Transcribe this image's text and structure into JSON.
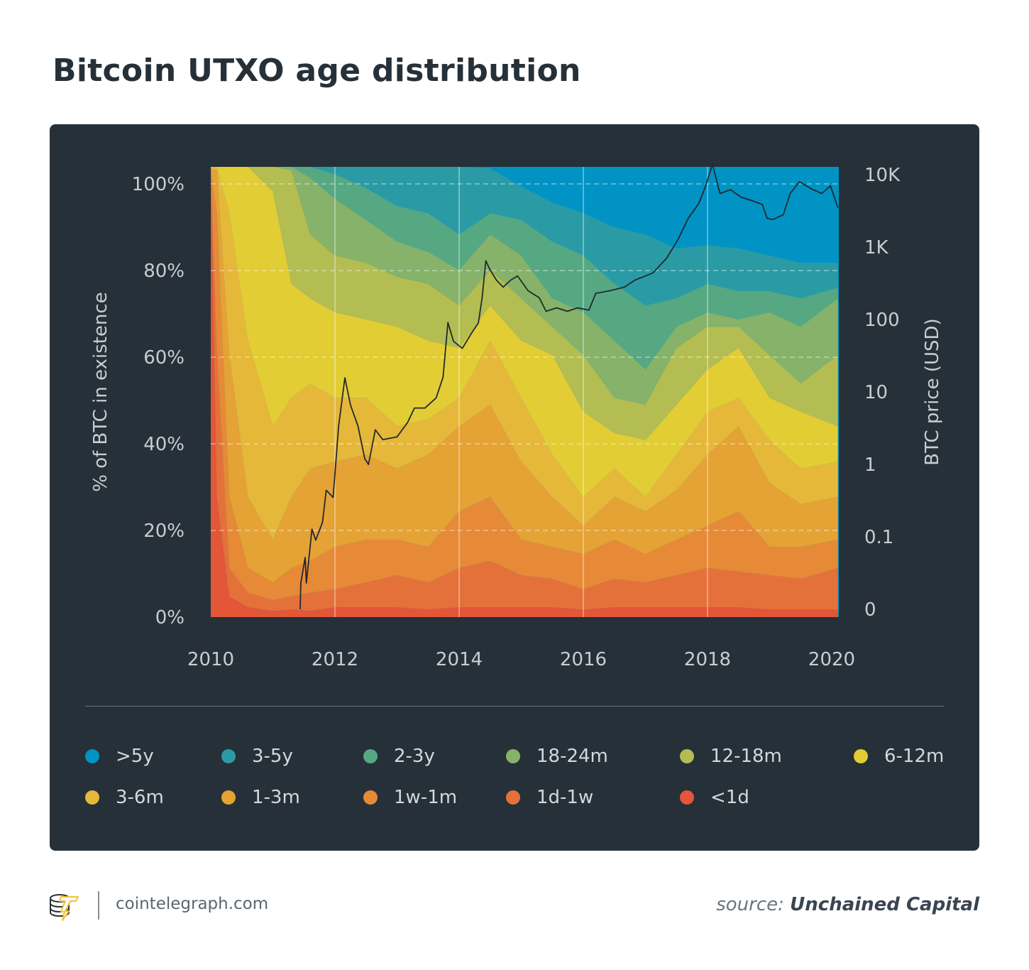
{
  "title": "Bitcoin UTXO age distribution",
  "footer": {
    "site": "cointelegraph.com",
    "source_prefix": "source:",
    "source_name": "Unchained Capital"
  },
  "chart_data": {
    "type": "area",
    "stacked": true,
    "title": "Bitcoin UTXO age distribution",
    "xlabel": "",
    "ylabel": "% of BTC in existence",
    "y2label": "BTC price (USD)",
    "xlim": [
      2010,
      2020.1
    ],
    "ylim": [
      0,
      100
    ],
    "y2_scale": "log",
    "x_ticks": [
      "2010",
      "2012",
      "2014",
      "2016",
      "2018",
      "2020"
    ],
    "x_tick_values": [
      2010,
      2012,
      2014,
      2016,
      2018,
      2020
    ],
    "y_ticks": [
      "0%",
      "20%",
      "40%",
      "60%",
      "80%",
      "100%"
    ],
    "y_tick_values": [
      0,
      20,
      40,
      60,
      80,
      100
    ],
    "y2_ticks": [
      "0",
      "0.1",
      "1",
      "10",
      "100",
      "1K",
      "10K"
    ],
    "y2_tick_values": [
      0.01,
      0.1,
      1,
      10,
      100,
      1000,
      10000
    ],
    "grid": true,
    "legend_position": "bottom",
    "x": [
      2010.0,
      2010.1,
      2010.3,
      2010.6,
      2011.0,
      2011.3,
      2011.6,
      2012.0,
      2012.5,
      2013.0,
      2013.5,
      2014.0,
      2014.5,
      2015.0,
      2015.5,
      2016.0,
      2016.5,
      2017.0,
      2017.5,
      2018.0,
      2018.5,
      2019.0,
      2019.5,
      2020.1
    ],
    "series_note_stack": "cumulative upper bound of each band, percent of BTC in existence",
    "series": [
      {
        "name": "<1d",
        "color": "#e35638",
        "cumulative": [
          99.2,
          26.7,
          4.6,
          2.2,
          1.4,
          1.7,
          1.4,
          2.2,
          2.2,
          2.2,
          1.7,
          2.2,
          2.2,
          2.2,
          2.2,
          1.7,
          2.2,
          2.2,
          2.2,
          2.2,
          2.2,
          1.7,
          1.7,
          1.7
        ]
      },
      {
        "name": "1d-1w",
        "color": "#e5713a",
        "cumulative": [
          99.5,
          58.2,
          10.9,
          5.4,
          3.8,
          4.6,
          5.4,
          6.2,
          7.7,
          9.3,
          7.7,
          10.9,
          12.5,
          9.3,
          8.5,
          6.2,
          8.5,
          7.7,
          9.3,
          10.9,
          10.1,
          9.3,
          8.5,
          10.9
        ]
      },
      {
        "name": "1w-1m",
        "color": "#e68a37",
        "cumulative": [
          99.7,
          89.7,
          26.7,
          10.9,
          7.7,
          10.9,
          12.5,
          15.6,
          17.2,
          17.2,
          15.6,
          23.5,
          26.7,
          17.2,
          15.6,
          14.0,
          17.2,
          14.0,
          17.2,
          20.3,
          23.5,
          15.6,
          15.6,
          17.2
        ]
      },
      {
        "name": "1-3m",
        "color": "#e5a235",
        "cumulative": [
          99.8,
          99.2,
          58.2,
          26.7,
          17.2,
          26.7,
          33.0,
          34.5,
          36.1,
          33.0,
          36.1,
          42.4,
          47.2,
          34.5,
          26.7,
          20.3,
          26.7,
          23.5,
          28.2,
          36.1,
          42.4,
          29.8,
          25.1,
          26.7
        ]
      },
      {
        "name": "3-6m",
        "color": "#e6b83a",
        "cumulative": [
          100,
          100,
          89.7,
          61.4,
          42.4,
          48.7,
          51.9,
          48.7,
          48.7,
          42.4,
          44.0,
          48.7,
          61.4,
          48.7,
          36.1,
          26.7,
          33.0,
          26.7,
          36.1,
          45.6,
          48.7,
          39.3,
          33.0,
          34.5
        ]
      },
      {
        "name": "6-12m",
        "color": "#e2cd35",
        "cumulative": [
          100,
          100,
          100,
          100,
          94.5,
          74.0,
          70.8,
          67.7,
          66.1,
          64.5,
          61.4,
          59.8,
          69.2,
          61.4,
          58.2,
          45.6,
          40.9,
          39.3,
          47.2,
          55.0,
          59.8,
          48.7,
          45.6,
          42.4
        ]
      },
      {
        "name": "12-18m",
        "color": "#b4bd51",
        "cumulative": [
          100,
          100,
          100,
          100,
          100,
          99.2,
          85.0,
          80.3,
          78.7,
          75.6,
          74.0,
          69.2,
          77.1,
          70.8,
          64.5,
          58.2,
          48.7,
          47.2,
          59.8,
          64.5,
          64.5,
          58.2,
          51.9,
          58.2
        ]
      },
      {
        "name": "18-24m",
        "color": "#86b26a",
        "cumulative": [
          100,
          100,
          100,
          100,
          100,
          100,
          97.6,
          92.9,
          88.2,
          83.4,
          81.1,
          77.1,
          85.0,
          80.3,
          70.8,
          67.7,
          61.4,
          55.0,
          64.5,
          67.7,
          66.1,
          67.7,
          64.5,
          70.8
        ]
      },
      {
        "name": "2-3y",
        "color": "#56a883",
        "cumulative": [
          100,
          100,
          100,
          100,
          100,
          100,
          100,
          98.4,
          95.3,
          91.3,
          89.7,
          85.0,
          89.7,
          88.2,
          83.4,
          80.3,
          74.0,
          69.2,
          70.8,
          74.0,
          72.4,
          72.4,
          70.8,
          73.2
        ]
      },
      {
        "name": "3-5y",
        "color": "#2a9ba5",
        "cumulative": [
          100,
          100,
          100,
          100,
          100,
          100,
          100,
          100,
          100,
          100,
          100,
          100,
          99.7,
          95.7,
          92.1,
          89.7,
          86.6,
          85.0,
          81.9,
          82.6,
          81.9,
          80.3,
          78.7,
          78.7
        ]
      },
      {
        "name": ">5y",
        "color": "#0093c4",
        "cumulative": [
          100,
          100,
          100,
          100,
          100,
          100,
          100,
          100,
          100,
          100,
          100,
          100,
          100,
          100,
          100,
          100,
          100,
          100,
          100,
          100,
          100,
          100,
          100,
          100
        ]
      }
    ],
    "price_series": {
      "color": "#222a30",
      "points": [
        [
          2011.44,
          0.01
        ],
        [
          2011.45,
          0.023
        ],
        [
          2011.52,
          0.052
        ],
        [
          2011.54,
          0.023
        ],
        [
          2011.63,
          0.128
        ],
        [
          2011.69,
          0.09
        ],
        [
          2011.8,
          0.16
        ],
        [
          2011.86,
          0.44
        ],
        [
          2011.97,
          0.35
        ],
        [
          2012.06,
          3.4
        ],
        [
          2012.16,
          15.7
        ],
        [
          2012.25,
          6.6
        ],
        [
          2012.37,
          3.4
        ],
        [
          2012.48,
          1.2
        ],
        [
          2012.54,
          1.0
        ],
        [
          2012.65,
          3.0
        ],
        [
          2012.77,
          2.2
        ],
        [
          2013.0,
          2.4
        ],
        [
          2013.17,
          3.8
        ],
        [
          2013.28,
          6
        ],
        [
          2013.45,
          6
        ],
        [
          2013.63,
          8.3
        ],
        [
          2013.74,
          16
        ],
        [
          2013.82,
          91
        ],
        [
          2013.91,
          50
        ],
        [
          2014.05,
          40
        ],
        [
          2014.2,
          65
        ],
        [
          2014.31,
          90
        ],
        [
          2014.37,
          200
        ],
        [
          2014.43,
          650
        ],
        [
          2014.49,
          500
        ],
        [
          2014.6,
          350
        ],
        [
          2014.71,
          280
        ],
        [
          2014.83,
          350
        ],
        [
          2014.94,
          400
        ],
        [
          2015.11,
          250
        ],
        [
          2015.29,
          200
        ],
        [
          2015.4,
          130
        ],
        [
          2015.57,
          145
        ],
        [
          2015.74,
          130
        ],
        [
          2015.91,
          145
        ],
        [
          2016.09,
          135
        ],
        [
          2016.2,
          230
        ],
        [
          2016.43,
          250
        ],
        [
          2016.66,
          280
        ],
        [
          2016.83,
          350
        ],
        [
          2017.12,
          440
        ],
        [
          2017.34,
          700
        ],
        [
          2017.52,
          1250
        ],
        [
          2017.69,
          2500
        ],
        [
          2017.86,
          4000
        ],
        [
          2017.97,
          7000
        ],
        [
          2018.08,
          14000
        ],
        [
          2018.2,
          5500
        ],
        [
          2018.37,
          6200
        ],
        [
          2018.54,
          4900
        ],
        [
          2018.71,
          4400
        ],
        [
          2018.88,
          3900
        ],
        [
          2018.96,
          2500
        ],
        [
          2019.05,
          2400
        ],
        [
          2019.22,
          2800
        ],
        [
          2019.33,
          5500
        ],
        [
          2019.48,
          8000
        ],
        [
          2019.67,
          6400
        ],
        [
          2019.84,
          5500
        ],
        [
          2019.98,
          7000
        ],
        [
          2020.1,
          3500
        ]
      ]
    }
  }
}
